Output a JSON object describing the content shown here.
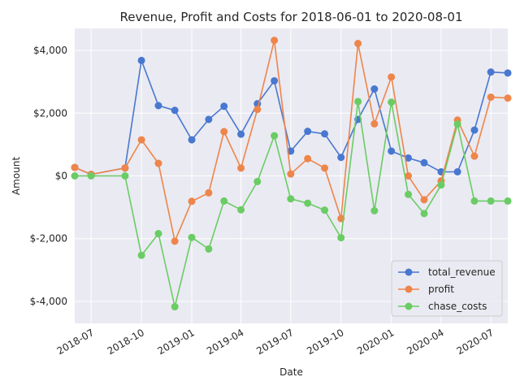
{
  "chart_data": {
    "type": "line",
    "title": "Revenue, Profit and Costs for 2018-06-01 to 2020-08-01",
    "xlabel": "Date",
    "ylabel": "Amount",
    "ylim": [
      -4700,
      4700
    ],
    "xlim": [
      "2018-06-01",
      "2020-08-01"
    ],
    "yticks": [
      -4000,
      -2000,
      0,
      2000,
      4000
    ],
    "ytick_labels": [
      "$-4,000",
      "$-2,000",
      "$0",
      "$2,000",
      "$4,000"
    ],
    "xticks": [
      "2018-07-01",
      "2018-10-01",
      "2019-01-01",
      "2019-04-01",
      "2019-07-01",
      "2019-10-01",
      "2020-01-01",
      "2020-04-01",
      "2020-07-01"
    ],
    "xtick_labels": [
      "2018-07",
      "2018-10",
      "2019-01",
      "2019-04",
      "2019-07",
      "2019-10",
      "2020-01",
      "2020-04",
      "2020-07"
    ],
    "grid": true,
    "legend_position": "lower-right",
    "x": [
      "2018-06-01",
      "2018-07-01",
      "2018-09-01",
      "2018-10-01",
      "2018-11-01",
      "2018-12-01",
      "2019-01-01",
      "2019-02-01",
      "2019-03-01",
      "2019-04-01",
      "2019-05-01",
      "2019-06-01",
      "2019-07-01",
      "2019-08-01",
      "2019-09-01",
      "2019-10-01",
      "2019-11-01",
      "2019-12-01",
      "2020-01-01",
      "2020-02-01",
      "2020-03-01",
      "2020-04-01",
      "2020-05-01",
      "2020-06-01",
      "2020-07-01",
      "2020-08-01"
    ],
    "series": [
      {
        "name": "total_revenue",
        "color": "#4878d0",
        "values": [
          270,
          50,
          250,
          3680,
          2240,
          2090,
          1150,
          1800,
          2220,
          1330,
          2300,
          3030,
          790,
          1420,
          1340,
          590,
          1800,
          2770,
          790,
          570,
          420,
          130,
          130,
          1460,
          3310,
          3280
        ]
      },
      {
        "name": "profit",
        "color": "#ee854a",
        "values": [
          270,
          50,
          250,
          1150,
          400,
          -2080,
          -810,
          -540,
          1410,
          250,
          2120,
          4320,
          60,
          550,
          250,
          -1360,
          4220,
          1660,
          3150,
          0,
          -760,
          -160,
          1780,
          630,
          2510,
          2480
        ]
      },
      {
        "name": "chase_costs",
        "color": "#6acc64",
        "values": [
          0,
          0,
          0,
          -2530,
          -1840,
          -4170,
          -1960,
          -2330,
          -800,
          -1080,
          -180,
          1280,
          -730,
          -870,
          -1090,
          -1970,
          2370,
          -1110,
          2350,
          -590,
          -1200,
          -290,
          1650,
          -800,
          -800,
          -800
        ]
      }
    ]
  }
}
